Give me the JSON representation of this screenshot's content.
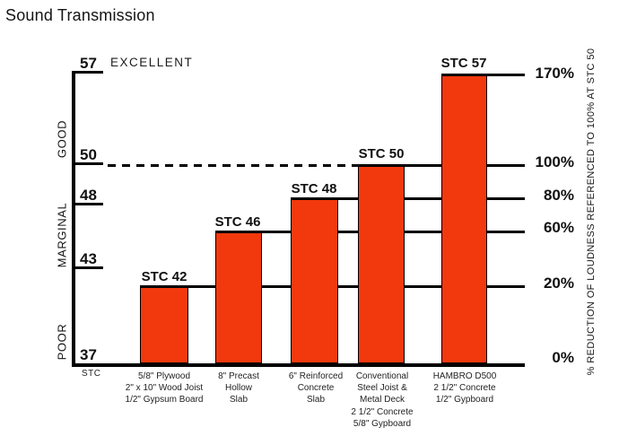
{
  "page_title": "Sound Transmission",
  "chart_data": {
    "type": "bar",
    "title": "Sound Transmission",
    "bar_color": "#F2390D",
    "left_axis": {
      "unit_label": "STC",
      "ticks": [
        "57",
        "50",
        "48",
        "43",
        "37"
      ],
      "zone_top": "EXCELLENT",
      "zones": [
        "GOOD",
        "MARGINAL",
        "POOR"
      ]
    },
    "right_axis": {
      "title": "% REDUCTION OF LOUDNESS REFERENCED TO 100% AT STC 50",
      "ticks": [
        "170%",
        "100%",
        "80%",
        "60%",
        "20%",
        "0%"
      ]
    },
    "reference_line": {
      "at_stc": 50,
      "at_percent": "100%",
      "style": "dashed"
    },
    "ylim_stc": [
      37,
      57
    ],
    "bars": [
      {
        "label": "STC 42",
        "stc": 42,
        "percent_reduction": 20,
        "lines": [
          "5/8\" Plywood",
          "2\" x 10\" Wood Joist",
          "1/2\" Gypsum Board"
        ]
      },
      {
        "label": "STC 46",
        "stc": 46,
        "percent_reduction": 60,
        "lines": [
          "8\" Precast",
          "Hollow",
          "Slab"
        ]
      },
      {
        "label": "STC 48",
        "stc": 48,
        "percent_reduction": 80,
        "lines": [
          "6\" Reinforced",
          "Concrete",
          "Slab"
        ]
      },
      {
        "label": "STC 50",
        "stc": 50,
        "percent_reduction": 100,
        "lines": [
          "Conventional",
          "Steel Joist &",
          "Metal Deck",
          "2 1/2\" Concrete",
          "5/8\" Gypboard"
        ]
      },
      {
        "label": "STC 57",
        "stc": 57,
        "percent_reduction": 170,
        "lines": [
          "HAMBRO D500",
          "2 1/2\" Concrete",
          "1/2\" Gypboard"
        ]
      }
    ]
  }
}
